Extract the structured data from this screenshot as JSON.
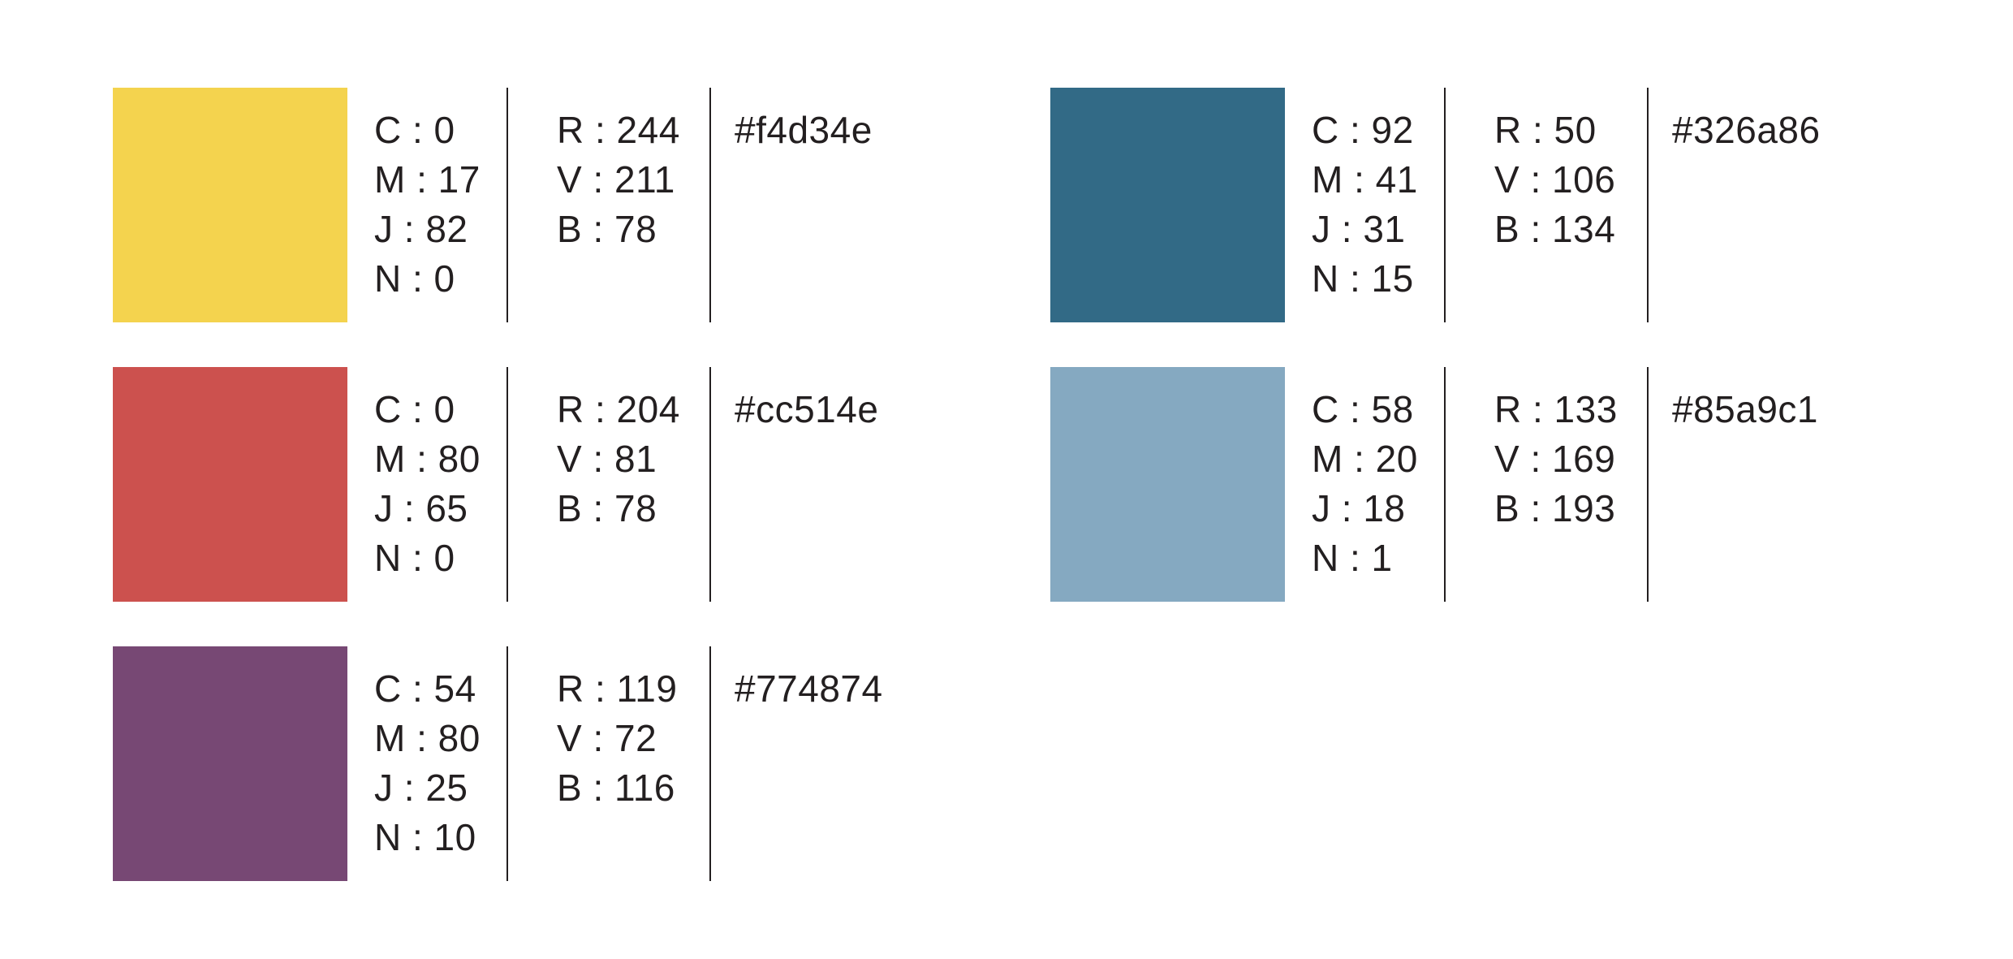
{
  "swatches": [
    {
      "color": "#f4d34e",
      "cmyk": [
        "C : 0",
        "M : 17",
        "J  : 82",
        "N : 0"
      ],
      "rgb": [
        "R : 244",
        "V : 211",
        "B : 78"
      ],
      "hex": "#f4d34e"
    },
    {
      "color": "#326a86",
      "cmyk": [
        "C : 92",
        "M : 41",
        "J  : 31",
        "N : 15"
      ],
      "rgb": [
        "R : 50",
        "V : 106",
        "B : 134"
      ],
      "hex": "#326a86"
    },
    {
      "color": "#cc514e",
      "cmyk": [
        "C : 0",
        "M : 80",
        "J  : 65",
        "N : 0"
      ],
      "rgb": [
        "R : 204",
        "V : 81",
        "B : 78"
      ],
      "hex": "#cc514e"
    },
    {
      "color": "#85a9c1",
      "cmyk": [
        "C : 58",
        "M : 20",
        "J  : 18",
        "N : 1"
      ],
      "rgb": [
        "R : 133",
        "V : 169",
        "B : 193"
      ],
      "hex": "#85a9c1"
    },
    {
      "color": "#774874",
      "cmyk": [
        "C : 54",
        "M : 80",
        "J  : 25",
        "N : 10"
      ],
      "rgb": [
        "R : 119",
        "V : 72",
        "B : 116"
      ],
      "hex": "#774874"
    }
  ]
}
